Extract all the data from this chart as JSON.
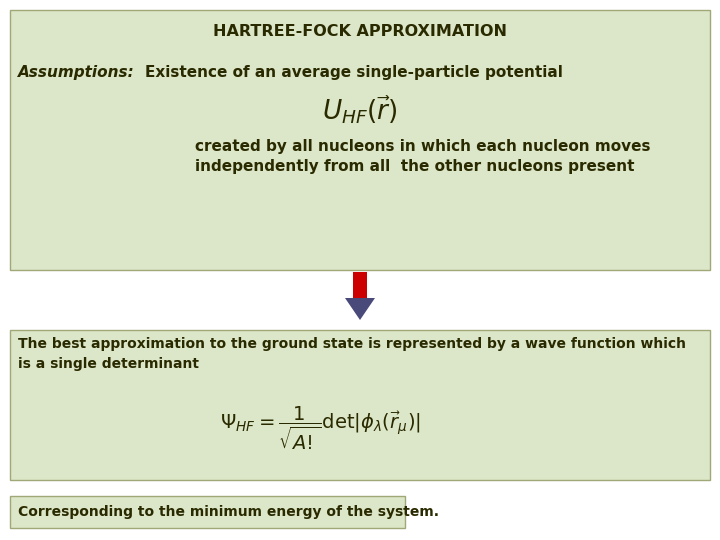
{
  "bg_color": "#ffffff",
  "top_box_color": "#dce6c8",
  "bottom_box_color": "#dce6c8",
  "last_box_color": "#dce6c8",
  "arrow_color": "#cc0000",
  "arrow_outline_color": "#4a4a8a",
  "title": "HARTREE-FOCK APPROXIMATION",
  "assumptions_label": "Assumptions:",
  "assumptions_text": "Existence of an average single-particle potential",
  "formula1": "$U_{HF}(\\vec{r})$",
  "created_text1": "created by all nucleons in which each nucleon moves",
  "created_text2": "independently from all  the other nucleons present",
  "bottom_text1": "The best approximation to the ground state is represented by a wave function which",
  "bottom_text2": "is a single determinant",
  "formula2": "$\\Psi_{HF} = \\dfrac{1}{\\sqrt{A!}} \\det |\\phi_{\\lambda}(\\vec{r}_{\\mu})|$",
  "last_text": "Corresponding to the minimum energy of the system.",
  "text_color": "#2a2a00",
  "box_edge_color": "#a0a878"
}
